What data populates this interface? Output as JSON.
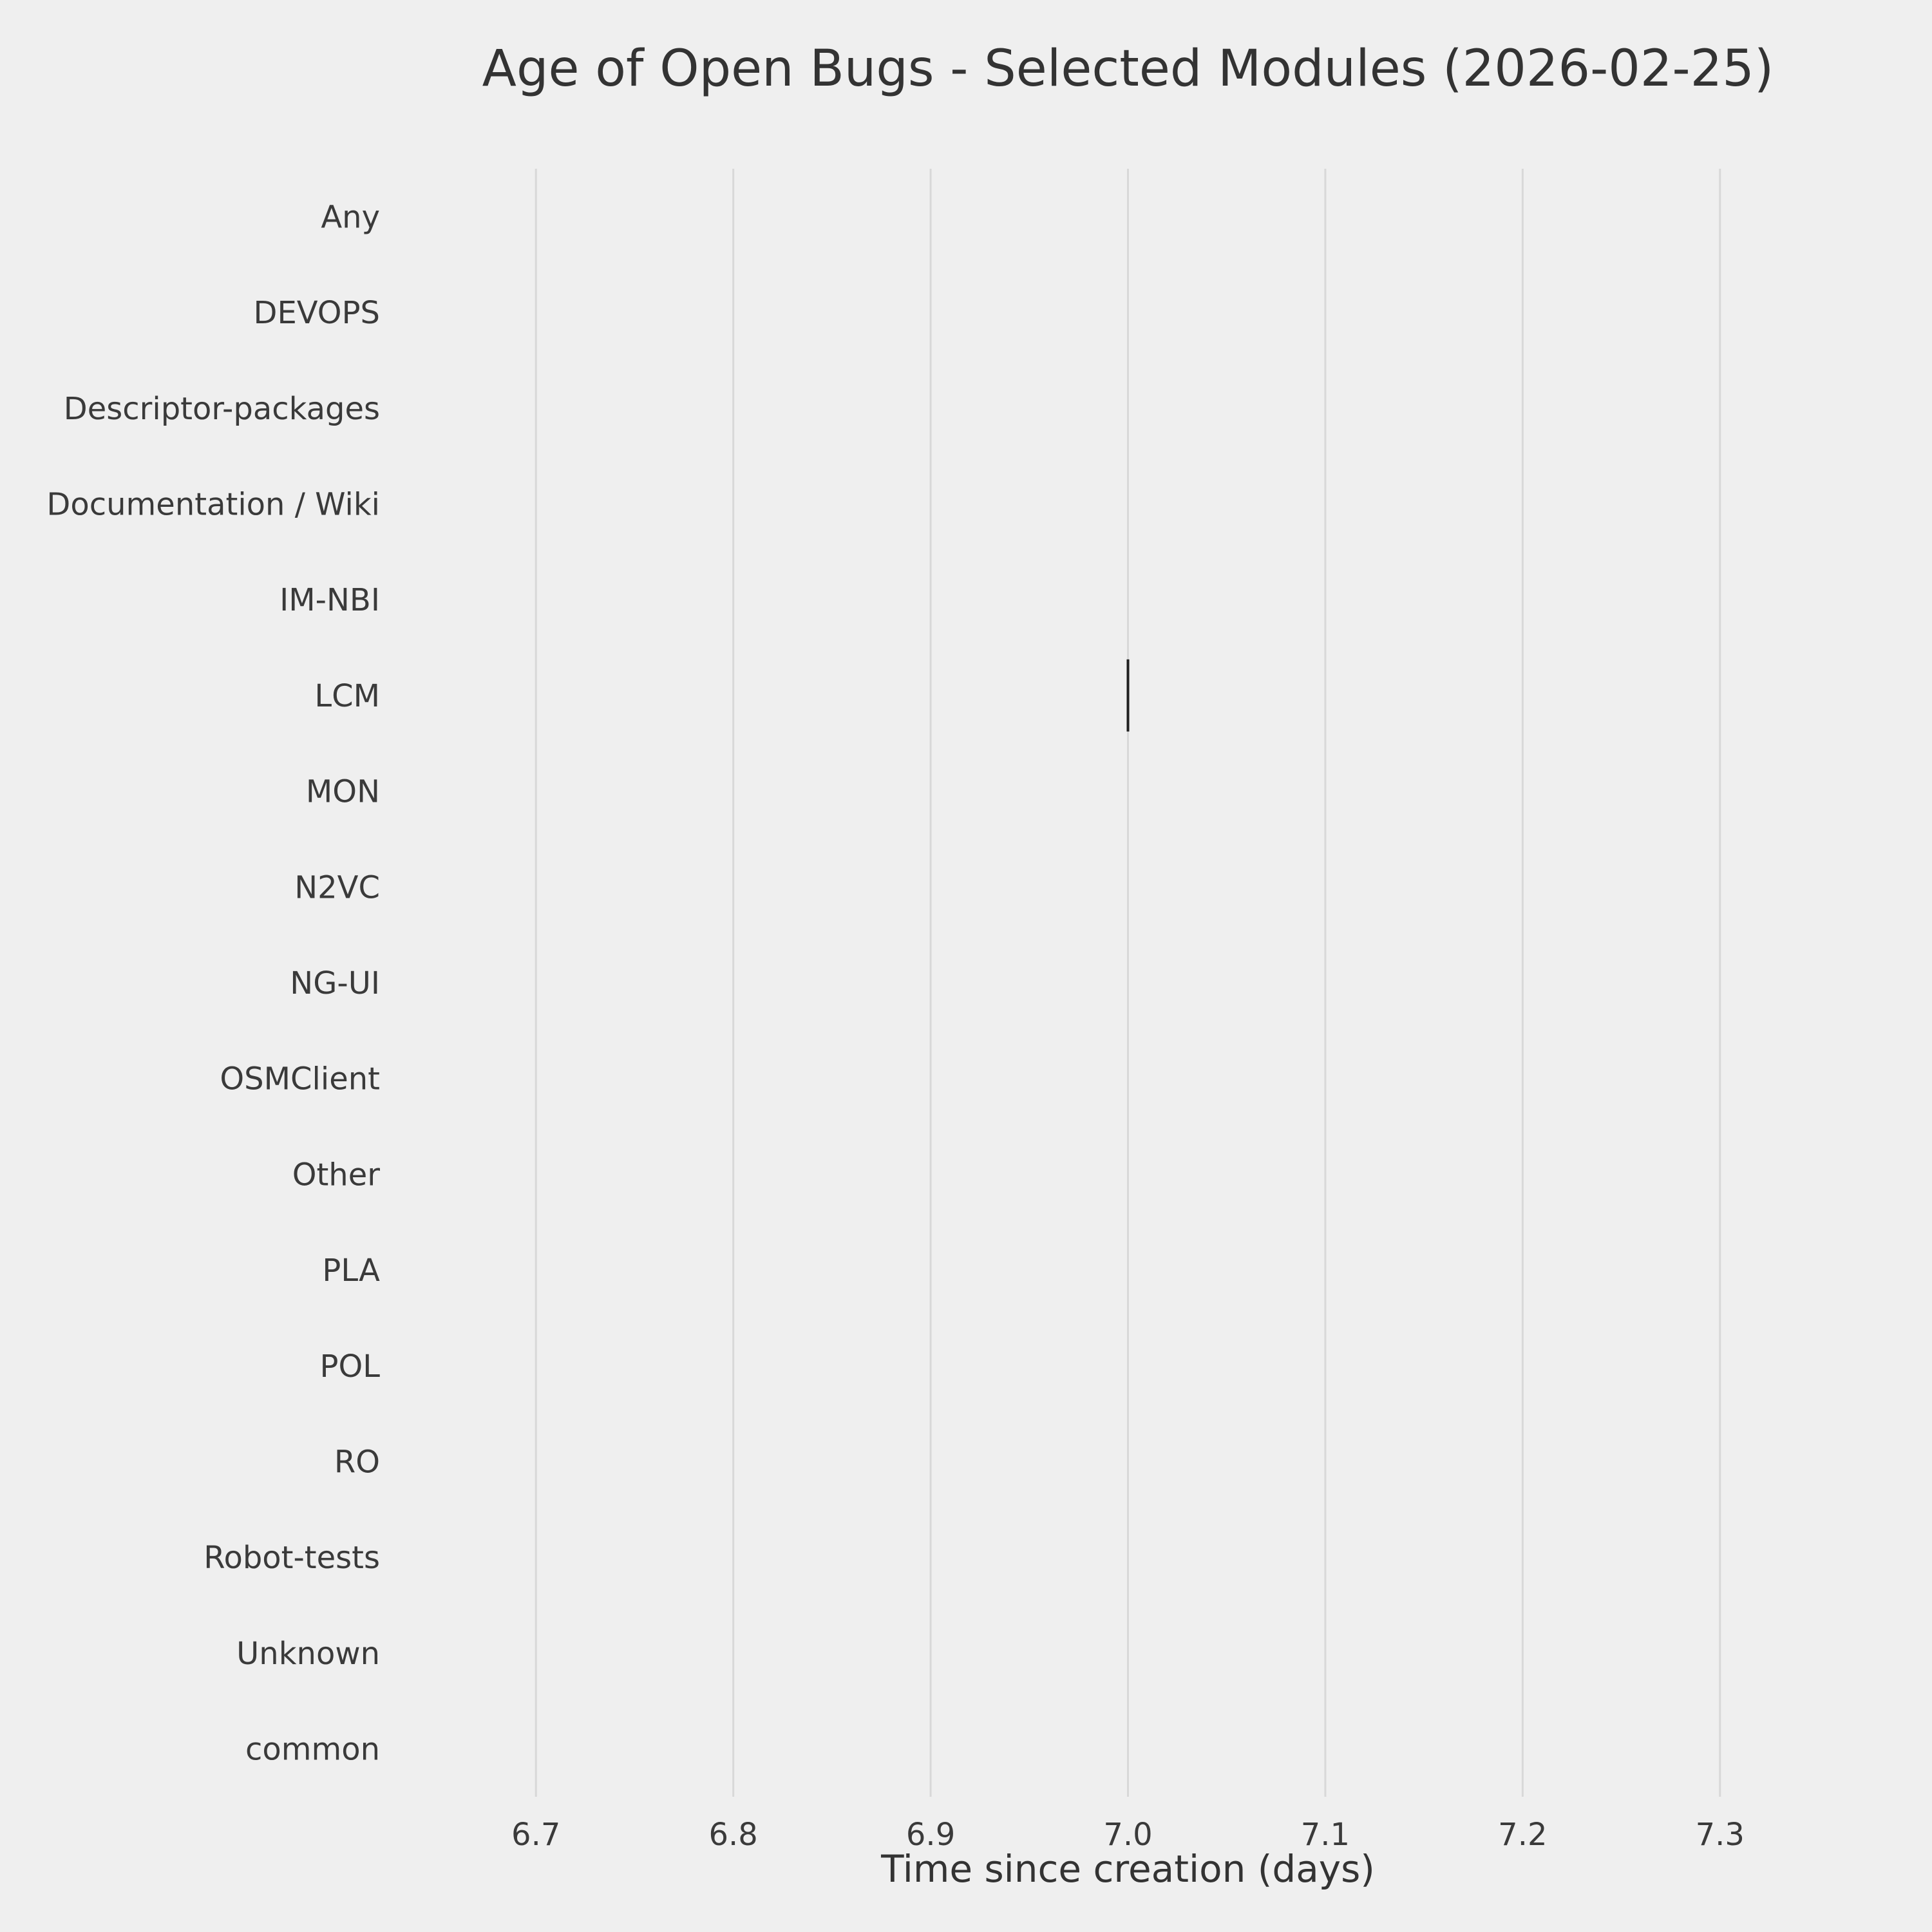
{
  "chart_data": {
    "type": "scatter",
    "marker": "|",
    "title": "Age of Open Bugs - Selected Modules (2026-02-25)",
    "xlabel": "Time since creation (days)",
    "ylabel": "",
    "categories": [
      "Any",
      "DEVOPS",
      "Descriptor-packages",
      "Documentation / Wiki",
      "IM-NBI",
      "LCM",
      "MON",
      "N2VC",
      "NG-UI",
      "OSMClient",
      "Other",
      "PLA",
      "POL",
      "RO",
      "Robot-tests",
      "Unknown",
      "common"
    ],
    "points": [
      {
        "category": "LCM",
        "x": 7.0
      }
    ],
    "xticks": [
      6.7,
      6.8,
      6.9,
      7.0,
      7.1,
      7.2,
      7.3
    ],
    "xtick_labels": [
      "6.7",
      "6.8",
      "6.9",
      "7.0",
      "7.1",
      "7.2",
      "7.3"
    ],
    "xlim": [
      6.65,
      7.35
    ],
    "grid": "vertical",
    "legend": "none",
    "colors": {
      "background": "#efefef",
      "gridline": "#d8d8d8",
      "marker": "#1f1f1f",
      "text": "#3a3a3a"
    }
  }
}
